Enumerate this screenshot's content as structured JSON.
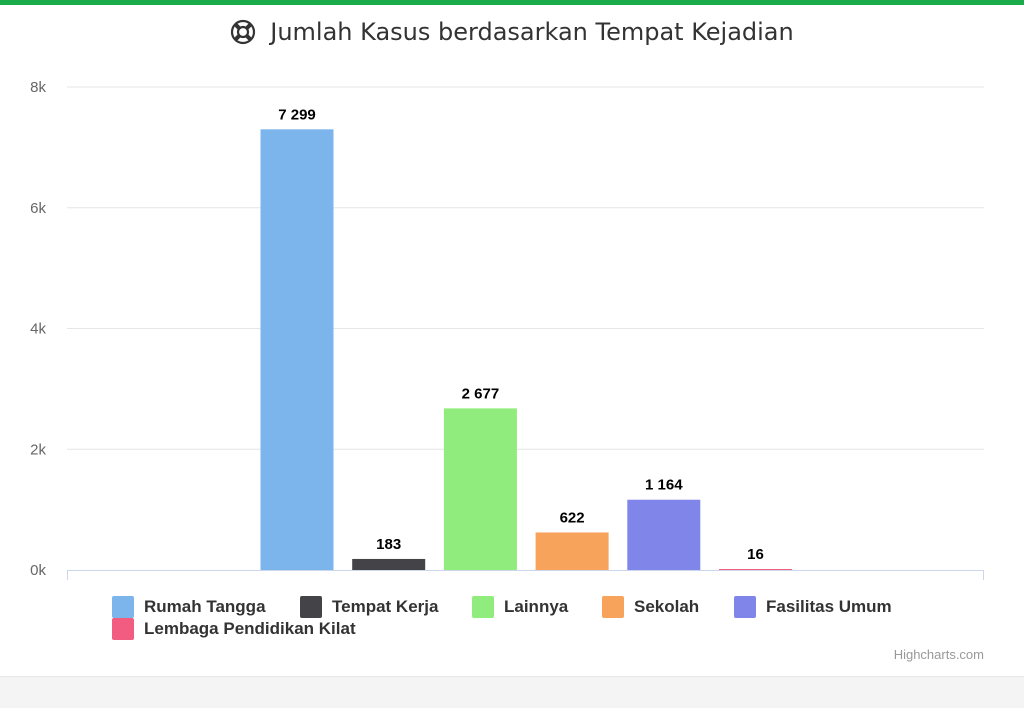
{
  "header": {
    "title": "Jumlah Kasus berdasarkan Tempat Kejadian",
    "icon": "life-ring-icon",
    "accent": "#1aab4a"
  },
  "chart_data": {
    "type": "bar",
    "title": "Jumlah Kasus berdasarkan Tempat Kejadian",
    "xlabel": "",
    "ylabel": "",
    "ylim": [
      0,
      8000
    ],
    "yticks": [
      0,
      2000,
      4000,
      6000,
      8000
    ],
    "ytick_labels": [
      "0k",
      "2k",
      "4k",
      "6k",
      "8k"
    ],
    "grid": true,
    "legend_position": "bottom",
    "series": [
      {
        "name": "Rumah Tangga",
        "value": 7299,
        "label": "7 299",
        "color": "#7cb5ec"
      },
      {
        "name": "Tempat Kerja",
        "value": 183,
        "label": "183",
        "color": "#434348"
      },
      {
        "name": "Lainnya",
        "value": 2677,
        "label": "2 677",
        "color": "#90ed7d"
      },
      {
        "name": "Sekolah",
        "value": 622,
        "label": "622",
        "color": "#f7a35c"
      },
      {
        "name": "Fasilitas Umum",
        "value": 1164,
        "label": "1 164",
        "color": "#8085e9"
      },
      {
        "name": "Lembaga Pendidikan Kilat",
        "value": 16,
        "label": "16",
        "color": "#f15c80"
      }
    ]
  },
  "legend": {
    "rows": [
      [
        0,
        1,
        2,
        3,
        4
      ],
      [
        5
      ]
    ]
  },
  "credits": {
    "text": "Highcharts.com"
  }
}
